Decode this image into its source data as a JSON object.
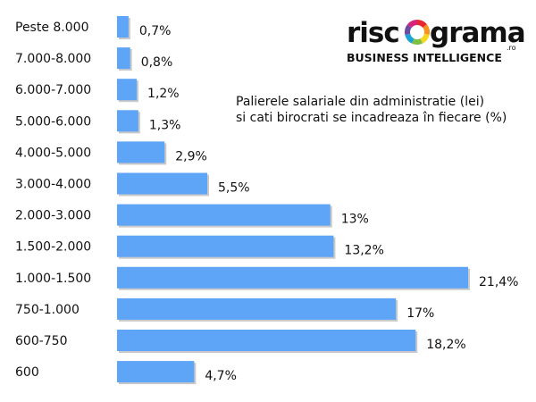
{
  "logo": {
    "word_left": "risc",
    "word_right": "grama",
    "suffix": ".ro",
    "tagline": "BUSINESS INTELLIGENCE",
    "ring_colors": [
      "#e8262f",
      "#f7931e",
      "#f5d81d",
      "#7ac143",
      "#1aa3d9",
      "#6c4ba0",
      "#d6247a"
    ]
  },
  "chart_data": {
    "type": "bar",
    "orientation": "horizontal",
    "title_lines": [
      "Palierele salariale din administratie (lei)",
      "si cati birocrati se incadreaza în fiecare (%)"
    ],
    "categories": [
      "Peste 8.000",
      "7.000-8.000",
      "6.000-7.000",
      "5.000-6.000",
      "4.000-5.000",
      "3.000-4.000",
      "2.000-3.000",
      "1.500-2.000",
      "1.000-1.500",
      "750-1.000",
      "600-750",
      "600"
    ],
    "values": [
      0.7,
      0.8,
      1.2,
      1.3,
      2.9,
      5.5,
      13,
      13.2,
      21.4,
      17,
      18.2,
      4.7
    ],
    "value_labels": [
      "0,7%",
      "0,8%",
      "1,2%",
      "1,3%",
      "2,9%",
      "5,5%",
      "13%",
      "13,2%",
      "21,4%",
      "17%",
      "18,2%",
      "4,7%"
    ],
    "xlim": [
      0,
      21.4
    ],
    "bar_color": "#5ea4f7",
    "grid": false,
    "legend": "none"
  }
}
